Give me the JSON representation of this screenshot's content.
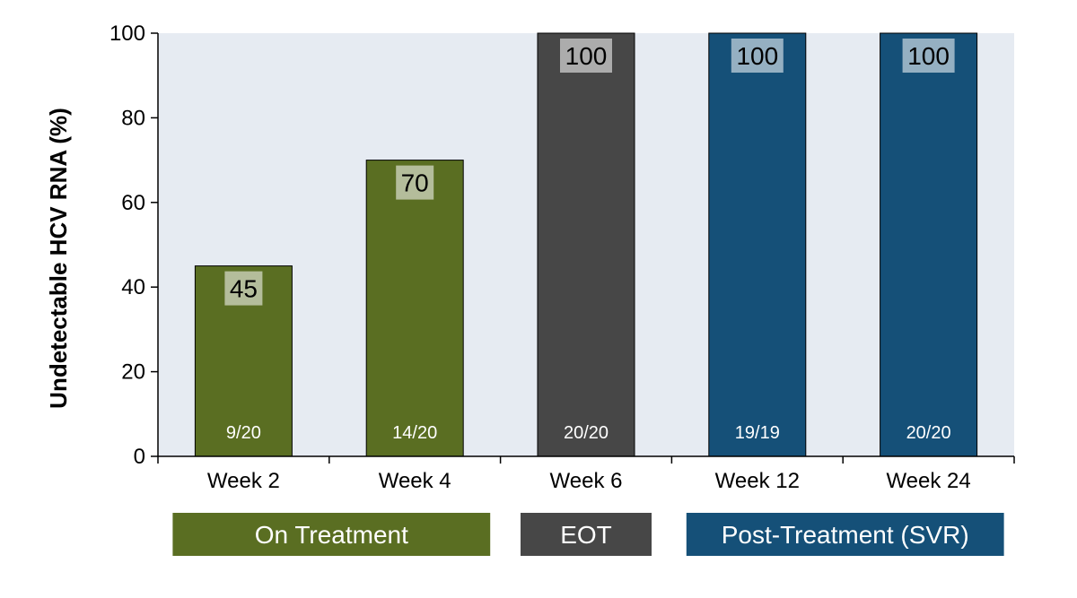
{
  "chart_data": {
    "type": "bar",
    "title": "",
    "ylabel": "Undetectable HCV RNA (%)",
    "xlabel": "",
    "ylim": [
      0,
      100
    ],
    "yticks": [
      0,
      20,
      40,
      60,
      80,
      100
    ],
    "grid": false,
    "categories": [
      "Week 2",
      "Week 4",
      "Week 6",
      "Week 12",
      "Week 24"
    ],
    "values": [
      45,
      70,
      100,
      100,
      100
    ],
    "value_labels": [
      "45",
      "70",
      "100",
      "100",
      "100"
    ],
    "fractions": [
      "9/20",
      "14/20",
      "20/20",
      "19/19",
      "20/20"
    ],
    "bar_colors": [
      "#5a6e22",
      "#5a6e22",
      "#474747",
      "#155078",
      "#155078"
    ],
    "plot_background": "#e6ebf2",
    "groups": [
      {
        "label": "On Treatment",
        "color": "#5a6e22",
        "categories": [
          "Week 2",
          "Week 4"
        ]
      },
      {
        "label": "EOT",
        "color": "#474747",
        "categories": [
          "Week 6"
        ]
      },
      {
        "label": "Post-Treatment (SVR)",
        "color": "#155078",
        "categories": [
          "Week 12",
          "Week 24"
        ]
      }
    ]
  }
}
